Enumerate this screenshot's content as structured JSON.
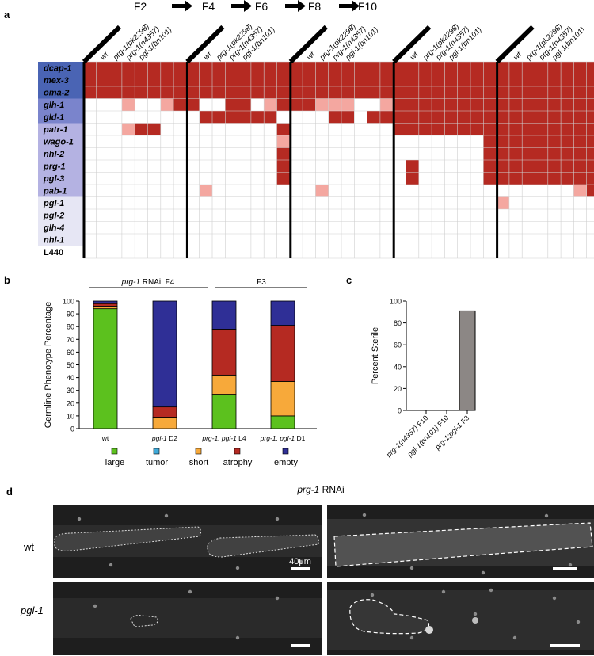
{
  "panel_a": {
    "label": "a",
    "generations": [
      "F2",
      "F4",
      "F6",
      "F8",
      "F10"
    ],
    "strains": [
      "wt",
      "prg-1(pk2298)",
      "prg-1(n4357)",
      "pgl-1(bn101)"
    ],
    "genes": [
      {
        "name": "dcap-1",
        "group": "dark"
      },
      {
        "name": "mex-3",
        "group": "dark"
      },
      {
        "name": "oma-2",
        "group": "dark"
      },
      {
        "name": "glh-1",
        "group": "mid"
      },
      {
        "name": "gld-1",
        "group": "mid"
      },
      {
        "name": "patr-1",
        "group": "light"
      },
      {
        "name": "wago-1",
        "group": "light"
      },
      {
        "name": "nhl-2",
        "group": "light"
      },
      {
        "name": "prg-1",
        "group": "light"
      },
      {
        "name": "pgl-3",
        "group": "light"
      },
      {
        "name": "pab-1",
        "group": "light"
      },
      {
        "name": "pgl-1",
        "group": "pale"
      },
      {
        "name": "pgl-2",
        "group": "pale"
      },
      {
        "name": "glh-4",
        "group": "pale"
      },
      {
        "name": "nhl-1",
        "group": "pale"
      },
      {
        "name": "L440",
        "group": "none"
      }
    ],
    "grid": [
      "2222222222222222222222222222222222222222",
      "2222222222222222222222222222222222222222",
      "2222222222222222222222222222222222222222",
      "0001001220022012221110012222222222222222",
      "0000000002222220000220222222222222222222",
      "0001220000000002000000002222222222222222",
      "0000000000000001000000000000000222222222",
      "0000000000000002000000000000000222222222",
      "0000000000000002000000000200000222222222",
      "0000000000000002000000000200000222222222",
      "0000000001000000001000000000000000000012",
      "0000000000000000000000000000000010000000",
      "0000000000000000000000000000000000000000",
      "0000000000000000000000000000000000000000",
      "0000000000000000000000000000000000000000",
      "0000000000000000000000000000000000000000"
    ],
    "colors": {
      "full": "#b52a22",
      "partial": "#f4a7a0",
      "none": "#ffffff",
      "label_dark": "#4a64b4",
      "label_mid": "#7a84cc",
      "label_light": "#b4b2e2",
      "label_pale": "#e6e6f4"
    }
  },
  "panel_b": {
    "label": "b",
    "group1": "prg-1 RNAi, F4",
    "group1_italic": "prg-1",
    "group1_rest": " RNAi, F4",
    "group2": "F3",
    "chart_data": {
      "type": "bar",
      "stacked": true,
      "ylabel": "Germline Phenotype Percentage",
      "ylim": [
        0,
        100
      ],
      "yticks": [
        0,
        10,
        20,
        30,
        40,
        50,
        60,
        70,
        80,
        90,
        100
      ],
      "categories": [
        "wt",
        "pgl-1 D2",
        "prg-1, pgl-1 L4",
        "prg-1, pgl-1 D1"
      ],
      "category_parts": [
        [
          "wt",
          ""
        ],
        [
          "pgl-1",
          " D2"
        ],
        [
          "prg-1, pgl-1",
          " L4"
        ],
        [
          "prg-1, pgl-1",
          " D1"
        ]
      ],
      "series": [
        {
          "name": "large",
          "color": "#5cc11e",
          "values": [
            94,
            0,
            27,
            10
          ]
        },
        {
          "name": "tumor",
          "color": "#3fa9d8",
          "values": [
            0,
            0,
            0,
            0
          ]
        },
        {
          "name": "short",
          "color": "#f7a93a",
          "values": [
            2,
            9,
            15,
            27
          ]
        },
        {
          "name": "atrophy",
          "color": "#b52a22",
          "values": [
            2,
            8,
            36,
            44
          ]
        },
        {
          "name": "empty",
          "color": "#2f2f96",
          "values": [
            2,
            83,
            22,
            19
          ]
        }
      ]
    }
  },
  "panel_c": {
    "label": "c",
    "chart_data": {
      "type": "bar",
      "ylabel": "Percent Sterile",
      "ylim": [
        0,
        100
      ],
      "yticks": [
        0,
        20,
        40,
        60,
        80,
        100
      ],
      "categories": [
        "prg-1(n4357) F10",
        "pgl-1(bn101) F10",
        "prg-1;pgl-1 F3"
      ],
      "category_parts": [
        [
          "prg-1(n4357)",
          " F10"
        ],
        [
          "pgl-1(bn101)",
          " F10"
        ],
        [
          "prg-1;pgl-1",
          " F3"
        ]
      ],
      "values": [
        0,
        0,
        91
      ],
      "color": "#8c8785"
    }
  },
  "panel_d": {
    "label": "d",
    "title_italic": "prg-1",
    "title_rest": " RNAi",
    "row_labels": [
      "wt",
      "pgl-1"
    ],
    "scale_label": "40μm"
  }
}
